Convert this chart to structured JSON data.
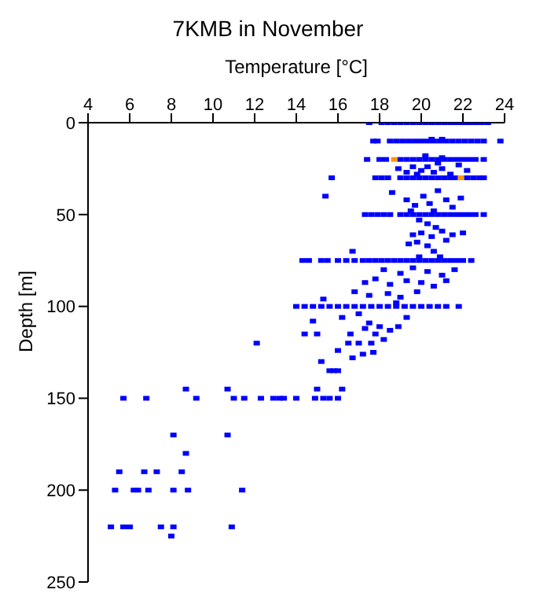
{
  "chart_data": {
    "type": "scatter",
    "title": "7KMB in November",
    "xlabel": "Temperature [°C]",
    "ylabel": "Depth [m]",
    "xlim": [
      4,
      24
    ],
    "xticks": [
      4,
      6,
      8,
      10,
      12,
      14,
      16,
      18,
      20,
      22,
      24
    ],
    "ylim": [
      250,
      0
    ],
    "yticks": [
      0,
      50,
      100,
      150,
      200,
      250
    ],
    "grid": false,
    "legend": false,
    "marker": "square",
    "series": [
      {
        "color": "#0000ff",
        "x": [
          17.5,
          18.1,
          18.4,
          18.7,
          19.0,
          19.3,
          19.6,
          19.9,
          20.2,
          20.5,
          20.8,
          21.1,
          21.4,
          21.7,
          22.0,
          22.3,
          22.6,
          22.9,
          23.2,
          17.7,
          17.9,
          18.5,
          18.8,
          19.1,
          19.4,
          19.7,
          20.0,
          20.3,
          20.6,
          20.9,
          21.2,
          21.5,
          21.8,
          22.1,
          22.4,
          22.7,
          23.0,
          23.8,
          20.5,
          21.0,
          17.4,
          18.0,
          18.3,
          19.0,
          19.3,
          19.6,
          19.9,
          20.2,
          20.5,
          20.8,
          21.1,
          21.4,
          21.7,
          22.0,
          22.3,
          22.6,
          23.0,
          20.2,
          21.0,
          15.7,
          17.8,
          18.1,
          18.4,
          19.0,
          19.3,
          19.6,
          19.9,
          20.2,
          20.5,
          20.8,
          21.1,
          21.4,
          21.7,
          22.2,
          22.5,
          22.8,
          23.0,
          18.9,
          19.3,
          19.6,
          20.0,
          20.3,
          20.6,
          21.0,
          21.4,
          21.8,
          22.2,
          20.8,
          19.8,
          15.4,
          18.6,
          19.3,
          19.7,
          20.1,
          20.4,
          20.8,
          21.2,
          21.5,
          21.9,
          20.6,
          19.5,
          17.3,
          17.6,
          17.9,
          18.2,
          18.5,
          19.0,
          19.3,
          19.6,
          19.9,
          20.2,
          20.5,
          20.8,
          21.1,
          21.4,
          21.7,
          22.0,
          22.3,
          22.6,
          23.0,
          19.9,
          20.3,
          20.7,
          20.0,
          20.5,
          21.0,
          19.6,
          19.8,
          20.3,
          21.2,
          21.5,
          20.6,
          16.7,
          19.4,
          22.0,
          20.9,
          19.9,
          14.3,
          14.6,
          15.2,
          15.5,
          16.0,
          16.4,
          16.8,
          17.2,
          17.5,
          17.8,
          18.1,
          18.4,
          18.7,
          19.0,
          19.3,
          19.6,
          19.9,
          20.2,
          20.5,
          20.8,
          21.1,
          21.4,
          21.7,
          22.0,
          22.4,
          18.2,
          19.0,
          19.6,
          20.3,
          21.0,
          21.6,
          17.3,
          17.8,
          18.5,
          19.3,
          20.0,
          20.6,
          21.2,
          16.8,
          17.5,
          18.4,
          19.0,
          19.8,
          15.3,
          18.8,
          14.0,
          14.4,
          14.8,
          15.2,
          15.6,
          16.0,
          16.4,
          16.8,
          17.2,
          17.6,
          18.0,
          18.4,
          18.8,
          19.2,
          19.6,
          20.0,
          20.4,
          20.8,
          21.2,
          21.8,
          14.8,
          16.2,
          17.0,
          17.5,
          18.0,
          18.5,
          17.3,
          17.8,
          18.2,
          17.6,
          16.5,
          17.0,
          12.1,
          16.0,
          17.2,
          17.7,
          16.7,
          15.2,
          15.0,
          14.4,
          16.6,
          18.9,
          19.3,
          15.6,
          15.8,
          16.0,
          15.0,
          16.2,
          8.7,
          10.7,
          5.7,
          6.8,
          9.2,
          11.0,
          11.5,
          12.3,
          12.9,
          13.2,
          13.4,
          14.0,
          14.9,
          15.3,
          15.6,
          16.0,
          8.1,
          10.7,
          8.7,
          5.5,
          6.7,
          7.3,
          8.5,
          5.3,
          6.2,
          6.4,
          6.9,
          8.1,
          8.8,
          11.4,
          5.1,
          5.7,
          6.0,
          7.5,
          8.1,
          10.9,
          8.0
        ],
        "values": [
          0,
          0,
          0,
          0,
          0,
          0,
          0,
          0,
          0,
          0,
          0,
          0,
          0,
          0,
          0,
          0,
          0,
          0,
          0,
          10,
          10,
          10,
          10,
          10,
          10,
          10,
          10,
          10,
          10,
          10,
          10,
          10,
          10,
          10,
          10,
          10,
          10,
          10,
          9,
          9,
          20,
          20,
          20,
          20,
          20,
          20,
          20,
          20,
          20,
          20,
          20,
          20,
          20,
          20,
          20,
          20,
          20,
          18,
          19,
          30,
          30,
          30,
          30,
          30,
          30,
          30,
          30,
          30,
          30,
          30,
          30,
          30,
          30,
          30,
          30,
          30,
          30,
          25,
          27,
          24,
          26,
          24,
          27,
          25,
          28,
          23,
          26,
          22,
          28,
          40,
          38,
          42,
          45,
          40,
          44,
          37,
          42,
          46,
          41,
          48,
          48,
          50,
          50,
          50,
          50,
          50,
          50,
          50,
          50,
          50,
          50,
          50,
          50,
          50,
          50,
          50,
          50,
          50,
          50,
          50,
          53,
          55,
          57,
          60,
          62,
          59,
          61,
          65,
          67,
          64,
          61,
          70,
          70,
          66,
          60,
          73,
          73,
          75,
          75,
          75,
          75,
          75,
          75,
          75,
          75,
          75,
          75,
          75,
          75,
          75,
          75,
          75,
          75,
          75,
          75,
          75,
          75,
          75,
          75,
          75,
          75,
          75,
          80,
          82,
          79,
          81,
          83,
          80,
          87,
          85,
          88,
          86,
          87,
          89,
          86,
          92,
          94,
          93,
          95,
          92,
          96,
          98,
          100,
          100,
          100,
          100,
          100,
          100,
          100,
          100,
          100,
          100,
          100,
          100,
          100,
          100,
          100,
          100,
          100,
          100,
          100,
          100,
          108,
          106,
          104,
          109,
          111,
          113,
          112,
          115,
          118,
          120,
          120,
          120,
          120,
          124,
          126,
          125,
          128,
          130,
          115,
          115,
          115,
          111,
          106,
          135,
          135,
          135,
          145,
          145,
          145,
          145,
          150,
          150,
          150,
          150,
          150,
          150,
          150,
          150,
          150,
          150,
          150,
          150,
          150,
          150,
          170,
          170,
          180,
          190,
          190,
          190,
          190,
          200,
          200,
          200,
          200,
          200,
          200,
          200,
          220,
          220,
          220,
          220,
          220,
          220,
          225
        ]
      },
      {
        "color": "#ff9900",
        "x": [
          18.7,
          21.9
        ],
        "values": [
          20,
          30
        ]
      }
    ]
  }
}
